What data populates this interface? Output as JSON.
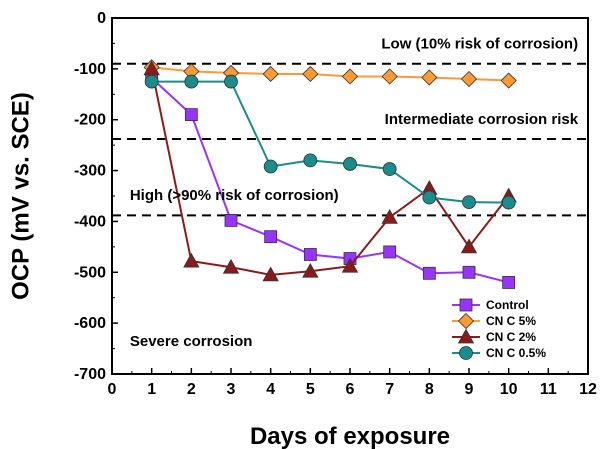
{
  "chart_data": {
    "type": "line",
    "xlabel": "Days of exposure",
    "ylabel": "OCP (mV vs. SCE)",
    "xlim": [
      0,
      12
    ],
    "ylim": [
      -700,
      0
    ],
    "xticks": [
      0,
      1,
      2,
      3,
      4,
      5,
      6,
      7,
      8,
      9,
      10,
      11,
      12
    ],
    "yticks": [
      0,
      -100,
      -200,
      -300,
      -400,
      -500,
      -600,
      -700
    ],
    "grid": false,
    "legend_position": "bottom-right",
    "x": [
      1,
      2,
      3,
      4,
      5,
      6,
      7,
      8,
      9,
      10
    ],
    "series": [
      {
        "name": "Control",
        "color": "#9933ff",
        "marker": "square",
        "values": [
          -118,
          -190,
          -398,
          -430,
          -465,
          -473,
          -460,
          -502,
          -500,
          -520
        ]
      },
      {
        "name": "CN C 5%",
        "color": "#ff9933",
        "marker": "diamond",
        "values": [
          -97,
          -105,
          -108,
          -110,
          -110,
          -115,
          -115,
          -117,
          -120,
          -123
        ]
      },
      {
        "name": "CN C 2%",
        "color": "#8b1a1a",
        "marker": "triangle",
        "values": [
          -100,
          -478,
          -490,
          -505,
          -498,
          -488,
          -392,
          -335,
          -450,
          -350
        ]
      },
      {
        "name": "CN C 0.5%",
        "color": "#1a8c8c",
        "marker": "circle",
        "values": [
          -125,
          -125,
          -125,
          -292,
          -280,
          -287,
          -297,
          -353,
          -362,
          -363
        ]
      }
    ],
    "thresholds": [
      -90,
      -238,
      -388
    ],
    "annotations": [
      {
        "text": "Low (10% risk of corrosion)",
        "x": 11.75,
        "y": -60,
        "anchor": "end",
        "color": "#000000"
      },
      {
        "text": "Intermediate corrosion risk",
        "x": 11.75,
        "y": -208,
        "anchor": "end",
        "color": "#000000"
      },
      {
        "text": "High (>90% risk of corrosion)",
        "x": 0.45,
        "y": -358,
        "anchor": "start",
        "color": "#000000"
      },
      {
        "text": "Severe corrosion",
        "x": 0.45,
        "y": -645,
        "anchor": "start",
        "color": "#dd2222"
      }
    ]
  }
}
